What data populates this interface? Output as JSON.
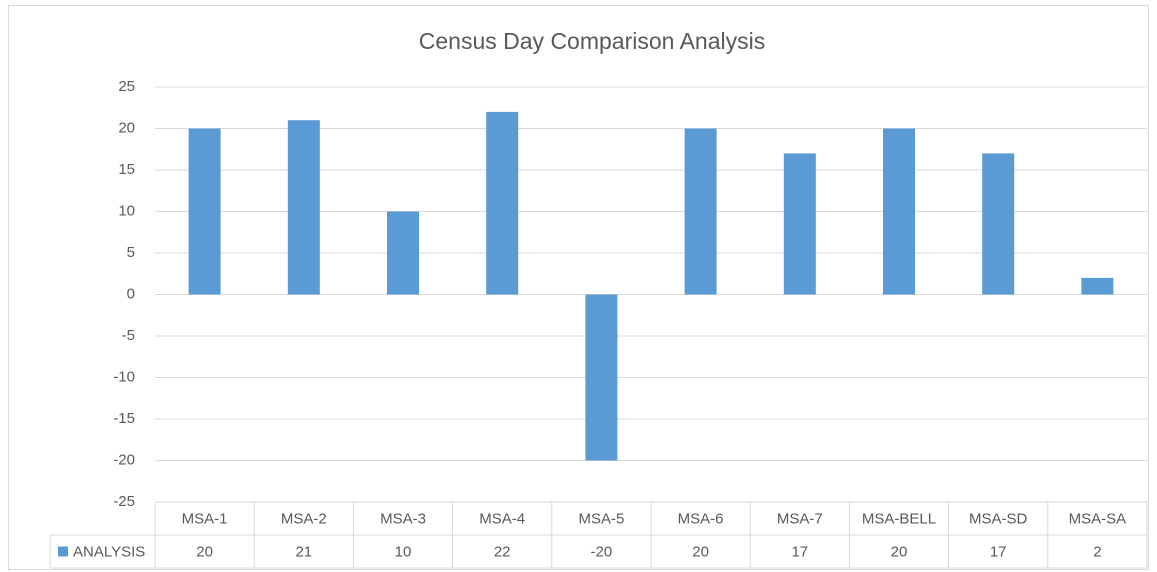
{
  "chart_data": {
    "type": "bar",
    "title": "Census Day Comparison Analysis",
    "categories": [
      "MSA-1",
      "MSA-2",
      "MSA-3",
      "MSA-4",
      "MSA-5",
      "MSA-6",
      "MSA-7",
      "MSA-BELL",
      "MSA-SD",
      "MSA-SA"
    ],
    "series": [
      {
        "name": "ANALYSIS",
        "color": "#5b9bd5",
        "values": [
          20,
          21,
          10,
          22,
          -20,
          20,
          17,
          20,
          17,
          2
        ]
      }
    ],
    "ylim": [
      -25,
      25
    ],
    "yticks": [
      -25,
      -20,
      -15,
      -10,
      -5,
      0,
      5,
      10,
      15,
      20,
      25
    ],
    "grid": true,
    "data_table": true
  }
}
